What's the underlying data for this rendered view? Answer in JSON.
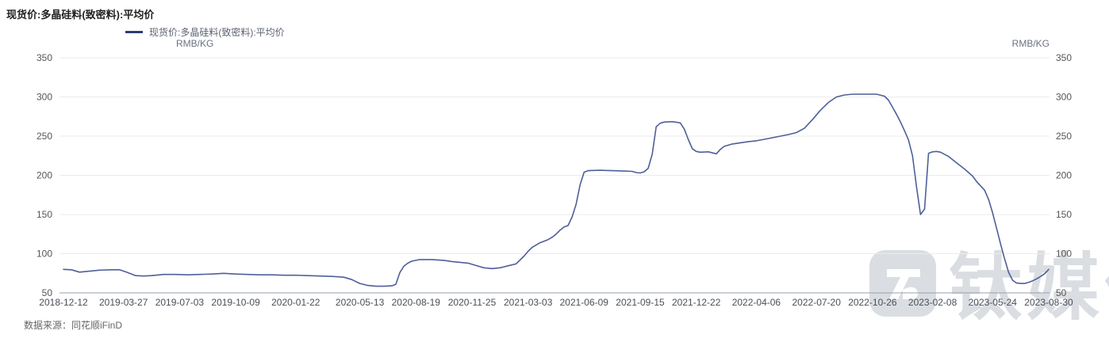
{
  "header": {
    "title": "现货价:多晶硅料(致密料):平均价"
  },
  "legend": {
    "label": "现货价:多晶硅料(致密料):平均价",
    "marker_color": "#2c3e70"
  },
  "units": {
    "left": "RMB/KG",
    "right": "RMB/KG"
  },
  "footer": {
    "source": "数据来源：同花顺iFinD"
  },
  "watermark": {
    "text": "钛媒体",
    "logo": "tmtpost-logo"
  },
  "chart_data": {
    "type": "line",
    "title": "现货价:多晶硅料(致密料):平均价",
    "ylabel": "RMB/KG",
    "ylim": [
      50,
      350
    ],
    "y_ticks": [
      350,
      300,
      250,
      200,
      150,
      100,
      50
    ],
    "x_ticks": [
      "2018-12-12",
      "2019-03-27",
      "2019-07-03",
      "2019-10-09",
      "2020-01-22",
      "2020-05-13",
      "2020-08-19",
      "2020-11-25",
      "2021-03-03",
      "2021-06-09",
      "2021-09-15",
      "2021-12-22",
      "2022-04-06",
      "2022-07-20",
      "2022-10-26",
      "2023-02-08",
      "2023-05-24",
      "2023-08-30"
    ],
    "grid": true,
    "legend_position": "top-left",
    "grid_color": "#ebebee",
    "axis_line_color": "#9aa0ac",
    "series": [
      {
        "name": "现货价:多晶硅料(致密料):平均价",
        "color": "#4f5f99",
        "points": [
          [
            "2018-12-12",
            80
          ],
          [
            "2018-12-26",
            79.5
          ],
          [
            "2019-01-09",
            76.5
          ],
          [
            "2019-01-23",
            77.5
          ],
          [
            "2019-02-13",
            79
          ],
          [
            "2019-03-06",
            79.5
          ],
          [
            "2019-03-20",
            79.5
          ],
          [
            "2019-04-03",
            76
          ],
          [
            "2019-04-17",
            72
          ],
          [
            "2019-05-01",
            71.5
          ],
          [
            "2019-05-15",
            72
          ],
          [
            "2019-06-05",
            73.5
          ],
          [
            "2019-06-26",
            73.5
          ],
          [
            "2019-07-17",
            73
          ],
          [
            "2019-08-07",
            73.5
          ],
          [
            "2019-08-28",
            74
          ],
          [
            "2019-09-18",
            75
          ],
          [
            "2019-10-09",
            74
          ],
          [
            "2019-10-30",
            73.5
          ],
          [
            "2019-11-20",
            73
          ],
          [
            "2019-12-11",
            73
          ],
          [
            "2020-01-01",
            72.5
          ],
          [
            "2020-01-22",
            72.5
          ],
          [
            "2020-02-12",
            72
          ],
          [
            "2020-03-04",
            71.5
          ],
          [
            "2020-03-25",
            71
          ],
          [
            "2020-04-15",
            70
          ],
          [
            "2020-04-29",
            67
          ],
          [
            "2020-05-13",
            62
          ],
          [
            "2020-05-27",
            59.5
          ],
          [
            "2020-06-10",
            58.5
          ],
          [
            "2020-06-24",
            58.5
          ],
          [
            "2020-07-08",
            59
          ],
          [
            "2020-07-15",
            61
          ],
          [
            "2020-07-22",
            76
          ],
          [
            "2020-07-29",
            84
          ],
          [
            "2020-08-05",
            88
          ],
          [
            "2020-08-12",
            90.5
          ],
          [
            "2020-08-26",
            92.5
          ],
          [
            "2020-09-16",
            92.5
          ],
          [
            "2020-10-07",
            91.5
          ],
          [
            "2020-10-21",
            90
          ],
          [
            "2020-11-04",
            89
          ],
          [
            "2020-11-18",
            88
          ],
          [
            "2020-12-02",
            85
          ],
          [
            "2020-12-16",
            82
          ],
          [
            "2020-12-30",
            81
          ],
          [
            "2021-01-13",
            82
          ],
          [
            "2021-01-27",
            84.5
          ],
          [
            "2021-02-10",
            87
          ],
          [
            "2021-02-24",
            97
          ],
          [
            "2021-03-03",
            103
          ],
          [
            "2021-03-10",
            108
          ],
          [
            "2021-03-17",
            111
          ],
          [
            "2021-03-24",
            114
          ],
          [
            "2021-03-31",
            116
          ],
          [
            "2021-04-07",
            118
          ],
          [
            "2021-04-14",
            121
          ],
          [
            "2021-04-21",
            125
          ],
          [
            "2021-04-28",
            130
          ],
          [
            "2021-05-05",
            134
          ],
          [
            "2021-05-12",
            136
          ],
          [
            "2021-05-19",
            147
          ],
          [
            "2021-05-26",
            163
          ],
          [
            "2021-06-02",
            188
          ],
          [
            "2021-06-09",
            204
          ],
          [
            "2021-06-16",
            206
          ],
          [
            "2021-07-07",
            206.5
          ],
          [
            "2021-07-28",
            206
          ],
          [
            "2021-08-18",
            205.5
          ],
          [
            "2021-09-01",
            205
          ],
          [
            "2021-09-08",
            203.5
          ],
          [
            "2021-09-15",
            203
          ],
          [
            "2021-09-22",
            204.5
          ],
          [
            "2021-09-29",
            209
          ],
          [
            "2021-10-06",
            227
          ],
          [
            "2021-10-13",
            262
          ],
          [
            "2021-10-20",
            266.5
          ],
          [
            "2021-10-27",
            268
          ],
          [
            "2021-11-10",
            268.5
          ],
          [
            "2021-11-24",
            267
          ],
          [
            "2021-12-01",
            259
          ],
          [
            "2021-12-08",
            246
          ],
          [
            "2021-12-15",
            234
          ],
          [
            "2021-12-22",
            230.5
          ],
          [
            "2021-12-29",
            229.5
          ],
          [
            "2022-01-12",
            230
          ],
          [
            "2022-01-26",
            227.5
          ],
          [
            "2022-02-02",
            233
          ],
          [
            "2022-02-09",
            237
          ],
          [
            "2022-02-23",
            240
          ],
          [
            "2022-03-09",
            241.5
          ],
          [
            "2022-03-23",
            243
          ],
          [
            "2022-04-06",
            244
          ],
          [
            "2022-04-20",
            246
          ],
          [
            "2022-05-04",
            248
          ],
          [
            "2022-05-18",
            250
          ],
          [
            "2022-06-01",
            252
          ],
          [
            "2022-06-15",
            254.5
          ],
          [
            "2022-06-29",
            260
          ],
          [
            "2022-07-13",
            271
          ],
          [
            "2022-07-27",
            283
          ],
          [
            "2022-08-10",
            293
          ],
          [
            "2022-08-24",
            300
          ],
          [
            "2022-09-07",
            302.5
          ],
          [
            "2022-09-21",
            303.5
          ],
          [
            "2022-10-12",
            303.5
          ],
          [
            "2022-11-02",
            303.5
          ],
          [
            "2022-11-16",
            301
          ],
          [
            "2022-11-23",
            296
          ],
          [
            "2022-11-30",
            287
          ],
          [
            "2022-12-07",
            278
          ],
          [
            "2022-12-14",
            268
          ],
          [
            "2022-12-21",
            257
          ],
          [
            "2022-12-28",
            245
          ],
          [
            "2023-01-04",
            225
          ],
          [
            "2023-01-11",
            185
          ],
          [
            "2023-01-18",
            150
          ],
          [
            "2023-01-25",
            157
          ],
          [
            "2023-02-01",
            228
          ],
          [
            "2023-02-08",
            230
          ],
          [
            "2023-02-15",
            230.5
          ],
          [
            "2023-02-22",
            229.5
          ],
          [
            "2023-03-08",
            224
          ],
          [
            "2023-03-22",
            216
          ],
          [
            "2023-04-05",
            208
          ],
          [
            "2023-04-19",
            199
          ],
          [
            "2023-04-26",
            192
          ],
          [
            "2023-05-10",
            181
          ],
          [
            "2023-05-17",
            169
          ],
          [
            "2023-05-24",
            152
          ],
          [
            "2023-05-31",
            132
          ],
          [
            "2023-06-07",
            112
          ],
          [
            "2023-06-14",
            93
          ],
          [
            "2023-06-21",
            76
          ],
          [
            "2023-06-28",
            66
          ],
          [
            "2023-07-05",
            62.5
          ],
          [
            "2023-07-12",
            62
          ],
          [
            "2023-07-19",
            62
          ],
          [
            "2023-07-26",
            63.5
          ],
          [
            "2023-08-02",
            65.5
          ],
          [
            "2023-08-09",
            68
          ],
          [
            "2023-08-16",
            71
          ],
          [
            "2023-08-23",
            74.5
          ],
          [
            "2023-08-30",
            80
          ]
        ]
      }
    ]
  }
}
